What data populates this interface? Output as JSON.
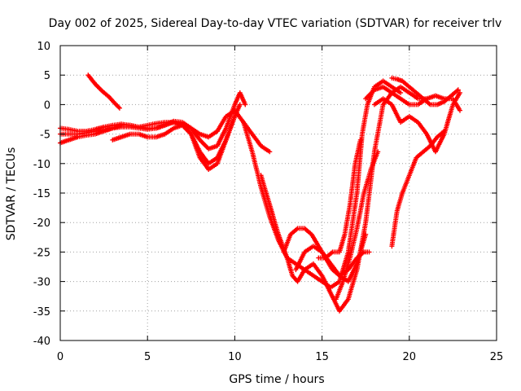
{
  "chart_data": {
    "type": "scatter",
    "title": "Day 002 of 2025, Sidereal Day-to-day VTEC variation (SDTVAR) for receiver trlv",
    "xlabel": "GPS time / hours",
    "ylabel": "SDTVAR / TECUs",
    "xlim": [
      0,
      25
    ],
    "ylim": [
      -40,
      10
    ],
    "xticks": [
      0,
      5,
      10,
      15,
      20,
      25
    ],
    "yticks": [
      -40,
      -35,
      -30,
      -25,
      -20,
      -15,
      -10,
      -5,
      0,
      5,
      10
    ],
    "grid": true,
    "marker": "+",
    "color": "#ff0000",
    "series": [
      {
        "x": [
          1.6,
          2.0,
          2.4,
          2.8,
          3.1,
          3.4
        ],
        "y": [
          5,
          3.5,
          2.3,
          1.3,
          0.3,
          -0.6
        ]
      },
      {
        "x": [
          0,
          0.5,
          1,
          1.5,
          2,
          2.5,
          3,
          3.5,
          4,
          4.5,
          5,
          5.5,
          6,
          6.5,
          7,
          7.5,
          8,
          8.5,
          9,
          9.5,
          10,
          10.5,
          11,
          11.5,
          12
        ],
        "y": [
          -4,
          -4.2,
          -4.5,
          -4.5,
          -4.2,
          -3.8,
          -3.5,
          -3.3,
          -3.5,
          -3.8,
          -3.5,
          -3.2,
          -3,
          -3,
          -3.3,
          -4,
          -5,
          -5.5,
          -4.5,
          -2,
          -1,
          -3,
          -5,
          -7,
          -8
        ]
      },
      {
        "x": [
          0,
          0.5,
          1,
          1.5,
          2,
          2.5,
          3,
          3.5,
          4,
          4.5,
          5,
          5.5,
          6,
          6.5,
          7,
          7.5,
          8,
          8.5,
          9,
          9.5,
          10,
          10.3,
          10.6
        ],
        "y": [
          -5,
          -5,
          -5,
          -4.8,
          -4.5,
          -4.3,
          -4,
          -3.8,
          -3.8,
          -4,
          -4.2,
          -4,
          -3.5,
          -2.8,
          -3,
          -4,
          -6,
          -7.5,
          -7,
          -4,
          0,
          2,
          0
        ]
      },
      {
        "x": [
          0,
          0.5,
          1,
          1.5,
          2,
          2.5,
          3,
          3.5,
          4,
          4.5,
          5,
          5.5,
          6,
          6.5,
          7,
          7.5,
          8,
          8.5,
          9,
          9.5,
          10,
          10.3
        ],
        "y": [
          -6.5,
          -6,
          -5.5,
          -5.2,
          -5,
          -4.5,
          -4,
          -3.5,
          -3.5,
          -3.8,
          -4,
          -4,
          -3.5,
          -3,
          -3.5,
          -5,
          -8,
          -10,
          -9,
          -6,
          -2,
          0
        ]
      },
      {
        "x": [
          3,
          3.5,
          4,
          4.5,
          5,
          5.5,
          6,
          6.5,
          7,
          7.5,
          8,
          8.5,
          9,
          9.5,
          10
        ],
        "y": [
          -6,
          -5.5,
          -5,
          -5,
          -5.5,
          -5.5,
          -5,
          -4,
          -3.5,
          -5,
          -9,
          -11,
          -10,
          -6,
          -2
        ]
      },
      {
        "x": [
          10.5,
          11,
          11.5,
          12,
          12.5,
          13,
          13.5,
          14,
          14.5,
          15,
          15.5,
          16,
          16.5,
          17,
          17.3,
          17.6,
          18,
          18.5,
          19,
          19.5
        ],
        "y": [
          -3,
          -8,
          -14,
          -19,
          -23,
          -26,
          -27,
          -28,
          -29,
          -30,
          -31,
          -30,
          -25,
          -15,
          -5,
          0,
          3,
          4,
          3,
          2
        ]
      },
      {
        "x": [
          11.5,
          12,
          12.5,
          13,
          13.3,
          13.6,
          14,
          14.5,
          15,
          15.5,
          16,
          16.5,
          17,
          17.5,
          18,
          18.5,
          19,
          19.5,
          20,
          20.5,
          21
        ],
        "y": [
          -12,
          -17,
          -22,
          -26,
          -29,
          -30,
          -28,
          -27,
          -29,
          -32,
          -35,
          -33,
          -28,
          -20,
          -8,
          0,
          2,
          3,
          2,
          1,
          1
        ]
      },
      {
        "x": [
          12.8,
          13.2,
          13.6,
          14,
          14.4,
          14.8,
          15.2,
          15.6,
          16,
          16.5,
          17,
          17.4,
          17.7
        ],
        "y": [
          -25,
          -22,
          -21,
          -21,
          -22,
          -24,
          -26,
          -28,
          -29,
          -28,
          -26,
          -25,
          -25
        ]
      },
      {
        "x": [
          13.5,
          14,
          14.5,
          15,
          15.5,
          16,
          16.5,
          17,
          17.5
        ],
        "y": [
          -28,
          -25,
          -24,
          -25,
          -27,
          -29,
          -30,
          -27,
          -22
        ]
      },
      {
        "x": [
          14.8,
          15.2,
          15.6,
          16,
          16.3,
          16.6,
          16.9,
          17.2
        ],
        "y": [
          -26,
          -26,
          -25,
          -25,
          -22,
          -17,
          -10,
          -6
        ]
      },
      {
        "x": [
          15.8,
          16.2,
          16.6,
          17,
          17.4,
          17.8,
          18.2
        ],
        "y": [
          -33,
          -30,
          -26,
          -21,
          -15,
          -11,
          -8
        ]
      },
      {
        "x": [
          17.5,
          18,
          18.5,
          19,
          19.5,
          20,
          20.5,
          21,
          21.5,
          22,
          22.5,
          22.9
        ],
        "y": [
          1,
          2.5,
          3,
          2,
          1,
          0,
          0,
          1,
          1.5,
          1,
          1,
          -1
        ]
      },
      {
        "x": [
          19,
          19.3,
          19.6,
          20,
          20.4,
          20.8,
          21.2,
          21.6,
          22,
          22.4,
          22.8
        ],
        "y": [
          4.5,
          4.3,
          4,
          3,
          2,
          1,
          0,
          0,
          0.5,
          1.5,
          2.5
        ]
      },
      {
        "x": [
          18,
          18.5,
          19,
          19.5,
          20,
          20.5,
          21,
          21.5,
          22,
          22.5,
          22.9
        ],
        "y": [
          0,
          1,
          0,
          -3,
          -2,
          -3,
          -5,
          -8,
          -5,
          0,
          2
        ]
      },
      {
        "x": [
          19,
          19.3,
          19.6,
          20,
          20.4,
          20.8,
          21.2,
          21.6,
          22
        ],
        "y": [
          -24,
          -18,
          -15,
          -12,
          -9,
          -8,
          -7,
          -5.5,
          -4.5
        ]
      }
    ]
  }
}
